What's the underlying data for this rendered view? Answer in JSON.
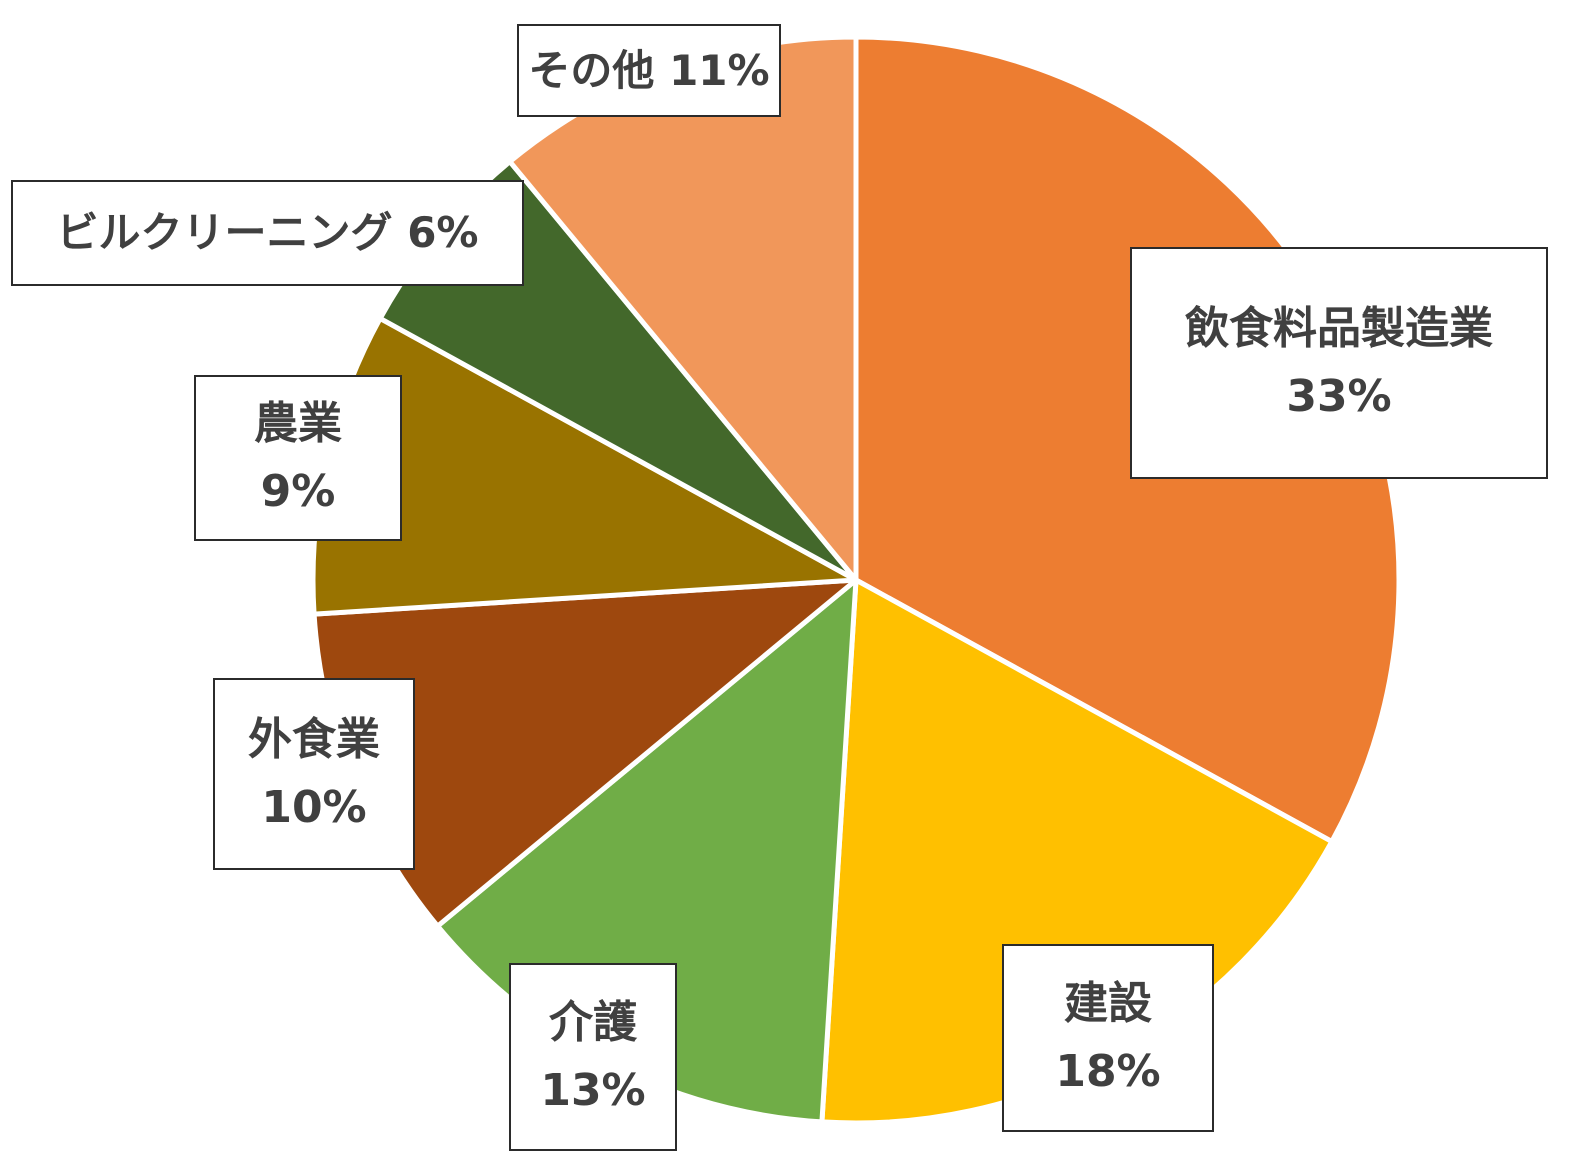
{
  "chart_data": {
    "type": "pie",
    "title": "",
    "start_angle_deg": 0,
    "direction": "clockwise",
    "slice_border": "#ffffff",
    "slices": [
      {
        "name": "飲食料品製造業",
        "value": 33,
        "label": "33%",
        "color": "#ED7D31"
      },
      {
        "name": "建設",
        "value": 18,
        "label": "18%",
        "color": "#FFC000"
      },
      {
        "name": "介護",
        "value": 13,
        "label": "13%",
        "color": "#70AD47"
      },
      {
        "name": "外食業",
        "value": 10,
        "label": "10%",
        "color": "#9E480E"
      },
      {
        "name": "農業",
        "value": 9,
        "label": "9%",
        "color": "#997300"
      },
      {
        "name": "ビルクリーニング",
        "value": 6,
        "label": "6%",
        "color": "#43682B"
      },
      {
        "name": "その他",
        "value": 11,
        "label": "11%",
        "color": "#F1975A"
      }
    ]
  }
}
